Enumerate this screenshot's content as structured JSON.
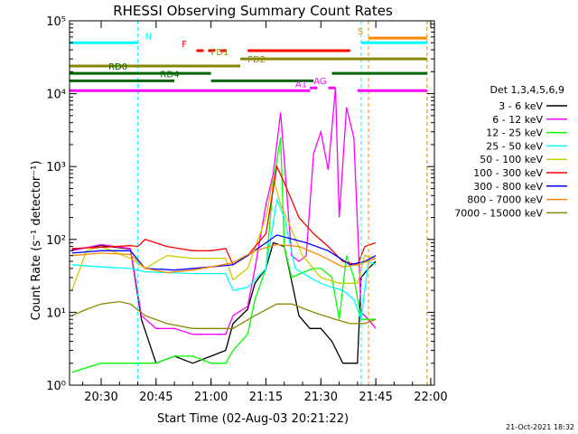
{
  "chart_data": {
    "type": "line",
    "title": "RHESSI Observing Summary Count Rates",
    "xlabel": "Start Time (02-Aug-03 20:21:22)",
    "ylabel": "Count Rate (s⁻¹ detector⁻¹)",
    "y_scale": "log",
    "xlim": [
      "20:21:22",
      "22:01:00"
    ],
    "ylim": [
      1,
      100000
    ],
    "x_ticks": [
      "20:30",
      "20:45",
      "21:00",
      "21:15",
      "21:30",
      "21:45",
      "22:00"
    ],
    "y_ticks": [
      "10⁰",
      "10¹",
      "10²",
      "10³",
      "10⁴",
      "10⁵"
    ],
    "legend_position": "right",
    "legend_title": "Det 1,3,4,5,6,9",
    "timestamp": "21-Oct-2021 18:32",
    "series": [
      {
        "name": "3 - 6 keV",
        "color": "#000000",
        "x": [
          "20:22",
          "20:30",
          "20:38",
          "20:41",
          "20:45",
          "20:50",
          "20:55",
          "21:00",
          "21:04",
          "21:06",
          "21:10",
          "21:12",
          "21:15",
          "21:17",
          "21:20",
          "21:24",
          "21:27",
          "21:30",
          "21:33",
          "21:36",
          "21:38",
          "21:40",
          "21:41",
          "21:43",
          "21:45"
        ],
        "values": [
          72,
          82,
          74,
          8,
          2,
          2.5,
          2,
          2.5,
          3,
          7,
          11,
          25,
          40,
          90,
          80,
          9,
          6,
          6,
          4,
          2,
          2,
          2,
          30,
          40,
          50
        ]
      },
      {
        "name": "6 - 12 keV",
        "color": "#ff00ff",
        "x": [
          "20:22",
          "20:30",
          "20:38",
          "20:41",
          "20:45",
          "20:50",
          "20:55",
          "21:00",
          "21:04",
          "21:06",
          "21:10",
          "21:12",
          "21:15",
          "21:17",
          "21:19",
          "21:20",
          "21:22",
          "21:24",
          "21:26",
          "21:28",
          "21:30",
          "21:32",
          "21:34",
          "21:35",
          "21:37",
          "21:39",
          "21:41",
          "21:43",
          "21:45"
        ],
        "values": [
          70,
          85,
          75,
          9,
          6,
          6,
          5,
          5,
          5,
          9,
          12,
          40,
          300,
          800,
          5500,
          1200,
          60,
          50,
          60,
          1500,
          3000,
          900,
          12000,
          200,
          6500,
          2500,
          10,
          8,
          6
        ]
      },
      {
        "name": "12 - 25 keV",
        "color": "#00ff00",
        "x": [
          "20:22",
          "20:30",
          "20:38",
          "20:41",
          "20:45",
          "20:50",
          "20:55",
          "21:00",
          "21:04",
          "21:06",
          "21:10",
          "21:12",
          "21:15",
          "21:17",
          "21:19",
          "21:20",
          "21:22",
          "21:25",
          "21:28",
          "21:30",
          "21:33",
          "21:35",
          "21:37",
          "21:39",
          "21:41",
          "21:43",
          "21:45"
        ],
        "values": [
          1.5,
          2,
          2,
          2,
          2,
          2.5,
          2.5,
          2,
          2,
          3,
          5,
          15,
          40,
          600,
          2500,
          80,
          30,
          35,
          40,
          40,
          30,
          8,
          60,
          30,
          8,
          8,
          8
        ]
      },
      {
        "name": "25 - 50 keV",
        "color": "#00ffff",
        "x": [
          "20:22",
          "20:30",
          "20:38",
          "20:42",
          "20:48",
          "20:55",
          "21:00",
          "21:04",
          "21:06",
          "21:10",
          "21:15",
          "21:18",
          "21:20",
          "21:23",
          "21:27",
          "21:30",
          "21:33",
          "21:36",
          "21:39",
          "21:41",
          "21:43",
          "21:45"
        ],
        "values": [
          45,
          42,
          40,
          36,
          35,
          34,
          34,
          34,
          20,
          22,
          40,
          350,
          200,
          40,
          30,
          25,
          22,
          20,
          15,
          8,
          50,
          45
        ]
      },
      {
        "name": "50 - 100 keV",
        "color": "#cccc00",
        "x": [
          "20:22",
          "20:26",
          "20:30",
          "20:38",
          "20:42",
          "20:48",
          "20:55",
          "21:00",
          "21:04",
          "21:06",
          "21:10",
          "21:15",
          "21:17",
          "21:19",
          "21:21",
          "21:25",
          "21:30",
          "21:35",
          "21:40",
          "21:42",
          "21:45"
        ],
        "values": [
          20,
          70,
          80,
          55,
          40,
          60,
          55,
          55,
          55,
          28,
          40,
          200,
          700,
          300,
          180,
          60,
          30,
          25,
          25,
          60,
          55
        ]
      },
      {
        "name": "100 - 300 keV",
        "color": "#ff0000",
        "x": [
          "20:22",
          "20:30",
          "20:38",
          "20:40",
          "20:42",
          "20:48",
          "20:55",
          "21:00",
          "21:04",
          "21:06",
          "21:10",
          "21:15",
          "21:18",
          "21:20",
          "21:24",
          "21:28",
          "21:32",
          "21:36",
          "21:40",
          "21:42",
          "21:45"
        ],
        "values": [
          75,
          78,
          82,
          80,
          100,
          80,
          70,
          70,
          75,
          45,
          60,
          120,
          1000,
          600,
          200,
          120,
          80,
          50,
          45,
          80,
          90
        ]
      },
      {
        "name": "300 - 800 keV",
        "color": "#0000ff",
        "x": [
          "20:22",
          "20:30",
          "20:38",
          "20:42",
          "20:50",
          "21:00",
          "21:06",
          "21:10",
          "21:15",
          "21:18",
          "21:21",
          "21:26",
          "21:32",
          "21:38",
          "21:42",
          "21:45"
        ],
        "values": [
          65,
          70,
          70,
          40,
          38,
          42,
          45,
          60,
          90,
          115,
          105,
          90,
          70,
          45,
          50,
          60
        ]
      },
      {
        "name": "800 - 7000 keV",
        "color": "#ff8800",
        "x": [
          "20:22",
          "20:30",
          "20:38",
          "20:42",
          "20:48",
          "20:55",
          "21:00",
          "21:06",
          "21:12",
          "21:18",
          "21:24",
          "21:30",
          "21:36",
          "21:40",
          "21:45"
        ],
        "values": [
          60,
          65,
          62,
          40,
          35,
          38,
          42,
          48,
          70,
          85,
          80,
          60,
          42,
          45,
          55
        ]
      },
      {
        "name": "7000 - 15000 keV",
        "color": "#888800",
        "x": [
          "20:22",
          "20:26",
          "20:30",
          "20:35",
          "20:38",
          "20:42",
          "20:48",
          "20:55",
          "21:00",
          "21:06",
          "21:12",
          "21:18",
          "21:22",
          "21:28",
          "21:34",
          "21:38",
          "21:42",
          "21:45"
        ],
        "values": [
          9,
          11,
          13,
          14,
          13,
          9,
          7,
          6,
          6,
          6,
          9,
          13,
          13,
          10,
          8,
          7,
          7,
          8
        ]
      }
    ],
    "vertical_lines": [
      {
        "x": "20:40",
        "color": "#00ffff"
      },
      {
        "x": "21:41",
        "color": "#00ffff"
      },
      {
        "x": "21:43",
        "color": "#ff8800"
      },
      {
        "x": "21:59",
        "color": "#00ffff"
      },
      {
        "x": "21:59",
        "color": "#ff8800"
      }
    ],
    "flag_bars": [
      {
        "label": "N",
        "color": "#00ffff",
        "y": 50000,
        "segments": [
          [
            "20:21:22",
            "20:40"
          ],
          [
            "21:41",
            "21:59"
          ]
        ]
      },
      {
        "label": "S",
        "color": "#ff8800",
        "y": 58000,
        "segments": [
          [
            "21:43",
            "21:59"
          ]
        ]
      },
      {
        "label": "F",
        "color": "#ff0000",
        "y": 39000,
        "dashed": true,
        "segments": [
          [
            "20:56",
            "21:04"
          ]
        ]
      },
      {
        "label": "",
        "color": "#ff0000",
        "y": 39000,
        "segments": [
          [
            "21:10",
            "21:38"
          ]
        ]
      },
      {
        "label": "FD1",
        "color": "#888800",
        "y": 30000,
        "segments": [
          [
            "21:08",
            "21:59"
          ]
        ]
      },
      {
        "label": "FD2",
        "color": "#888800",
        "y": 24000,
        "segments": [
          [
            "20:21:22",
            "21:08"
          ]
        ]
      },
      {
        "label": "RD0",
        "color": "#006600",
        "y": 19000,
        "segments": [
          [
            "20:21:22",
            "21:00"
          ],
          [
            "21:33",
            "21:59"
          ]
        ]
      },
      {
        "label": "RD4",
        "color": "#006600",
        "y": 15000,
        "segments": [
          [
            "20:21:22",
            "20:50"
          ],
          [
            "21:00",
            "21:28"
          ]
        ]
      },
      {
        "label": "AG",
        "color": "#ff00ff",
        "y": 12000,
        "segments": [
          [
            "21:27",
            "21:29"
          ],
          [
            "21:32",
            "21:34"
          ]
        ]
      },
      {
        "label": "A1",
        "color": "#ff00ff",
        "y": 11000,
        "segments": [
          [
            "20:21:22",
            "21:27"
          ],
          [
            "21:40",
            "21:59"
          ]
        ]
      }
    ]
  }
}
